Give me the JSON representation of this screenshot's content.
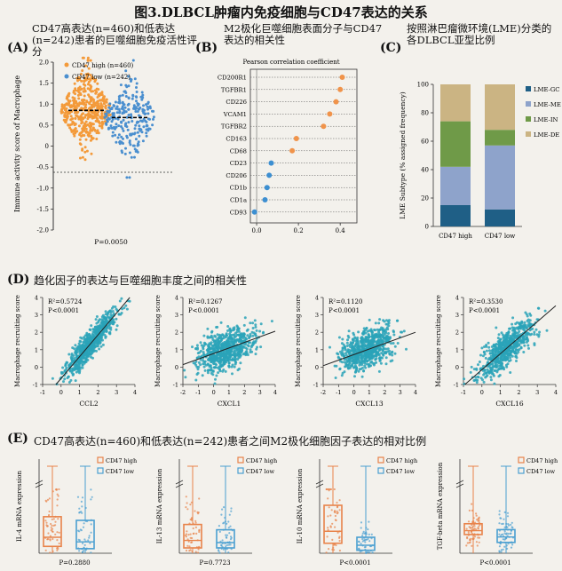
{
  "title": "图3.DLBCL肿瘤内免疫细胞与CD47表达的关系",
  "panelA": {
    "letter": "(A)",
    "title": "CD47高表达(n=460)和低表达(n=242)患者的巨噬细胞免疫活性评分",
    "legend": [
      "CD47 high (n=460)",
      "CD47 low (n=242)"
    ],
    "ylabel": "Immune activity score of Macrophage",
    "yticks": [
      "2.0",
      "1.5",
      "1.0",
      "0.5",
      "0",
      "-0.5",
      "-1.0",
      "-1.5",
      "-2.0"
    ],
    "pvalue": "P=0.0050",
    "colors": {
      "high": "#f39a3a",
      "low": "#4a8fcf"
    }
  },
  "panelB": {
    "letter": "(B)",
    "title": "M2极化巨噬细胞表面分子与CD47表达的相关性",
    "axis_title": "Pearson correlation coefficient",
    "xticks": [
      "0.0",
      "0.2",
      "0.4"
    ],
    "genes": [
      "CD200R1",
      "TGFBR1",
      "CD226",
      "VCAM1",
      "TGFBR2",
      "CD163",
      "CD68",
      "CD23",
      "CD206",
      "CD1b",
      "CD1a",
      "CD93"
    ]
  },
  "panelC": {
    "letter": "(C)",
    "title": "按照淋巴瘤微环境(LME)分类的各DLBCL亚型比例",
    "ylabel": "LME Subtype (% assigned frequency)",
    "yticks": [
      "100",
      "80",
      "60",
      "40",
      "20",
      "0"
    ],
    "xlabels": [
      "CD47 high",
      "CD47 low"
    ],
    "legend": [
      "LME-GC",
      "LME-ME",
      "LME-IN",
      "LME-DE"
    ]
  },
  "panelD": {
    "letter": "(D)",
    "title": "趋化因子的表达与巨噬细胞丰度之间的相关性",
    "ylabel": "Macrophage recruiting score",
    "plots": [
      {
        "xlabel": "CCL2",
        "r2": "R²=0.5724",
        "p": "P<0.0001"
      },
      {
        "xlabel": "CXCL1",
        "r2": "R²=0.1267",
        "p": "P<0.0001"
      },
      {
        "xlabel": "CXCL13",
        "r2": "R²=0.1120",
        "p": "P<0.0001"
      },
      {
        "xlabel": "CXCL16",
        "r2": "R²=0.3530",
        "p": "P<0.0001"
      }
    ]
  },
  "panelE": {
    "letter": "(E)",
    "title": "CD47高表达(n=460)和低表达(n=242)患者之间M2极化细胞因子表达的相对比例",
    "legend": [
      "CD47 high",
      "CD47 low"
    ],
    "plots": [
      {
        "ylabel": "IL-4 mRNA expression",
        "p": "P=0.2880"
      },
      {
        "ylabel": "IL-13 mRNA expression",
        "p": "P=0.7723"
      },
      {
        "ylabel": "IL-10 mRNA expression",
        "p": "P<0.0001"
      },
      {
        "ylabel": "TGF-beta mRNA expression",
        "p": "P<0.0001"
      }
    ]
  },
  "chart_data": [
    {
      "type": "scatter",
      "panel": "A",
      "categories": [
        "CD47 high",
        "CD47 low"
      ],
      "series": [
        {
          "name": "CD47 high (n=460)",
          "mean": 0.85
        },
        {
          "name": "CD47 low (n=242)",
          "mean": 0.68
        }
      ],
      "ylabel": "Immune activity score of Macrophage",
      "ylim": [
        -2.0,
        2.0
      ]
    },
    {
      "type": "scatter",
      "panel": "B",
      "categories": [
        "CD200R1",
        "TGFBR1",
        "CD226",
        "VCAM1",
        "TGFBR2",
        "CD163",
        "CD68",
        "CD23",
        "CD206",
        "CD1b",
        "CD1a",
        "CD93"
      ],
      "values": [
        0.41,
        0.4,
        0.38,
        0.35,
        0.32,
        0.19,
        0.17,
        0.07,
        0.06,
        0.05,
        0.04,
        -0.01
      ],
      "xlabel": "Pearson correlation coefficient",
      "xlim": [
        -0.03,
        0.48
      ]
    },
    {
      "type": "bar",
      "panel": "C",
      "categories": [
        "CD47 high",
        "CD47 low"
      ],
      "series": [
        {
          "name": "LME-GC",
          "values": [
            15,
            12
          ]
        },
        {
          "name": "LME-ME",
          "values": [
            27,
            45
          ]
        },
        {
          "name": "LME-IN",
          "values": [
            32,
            11
          ]
        },
        {
          "name": "LME-DE",
          "values": [
            26,
            32
          ]
        }
      ],
      "ylabel": "LME Subtype (% assigned frequency)",
      "ylim": [
        0,
        100
      ]
    },
    {
      "type": "scatter",
      "panel": "D",
      "plots": [
        {
          "xlabel": "CCL2",
          "r2": 0.5724,
          "xlim": [
            -1,
            4
          ],
          "ylim": [
            -1,
            4
          ],
          "slope": 1.25,
          "intercept": -0.65
        },
        {
          "xlabel": "CXCL1",
          "r2": 0.1267,
          "xlim": [
            -2,
            4
          ],
          "ylim": [
            -1,
            4
          ],
          "slope": 0.32,
          "intercept": 0.78
        },
        {
          "xlabel": "CXCL13",
          "r2": 0.112,
          "xlim": [
            -2,
            4
          ],
          "ylim": [
            -1,
            4
          ],
          "slope": 0.32,
          "intercept": 0.72
        },
        {
          "xlabel": "CXCL16",
          "r2": 0.353,
          "xlim": [
            -1,
            4
          ],
          "ylim": [
            -1,
            4
          ],
          "slope": 0.92,
          "intercept": -0.15
        }
      ],
      "ylabel": "Macrophage recruiting score"
    },
    {
      "type": "box",
      "panel": "E",
      "plots": [
        {
          "ylabel": "IL-4 mRNA expression",
          "high": {
            "q1": 0.15,
            "median": 0.35,
            "q3": 0.8
          },
          "low": {
            "q1": 0.1,
            "median": 0.25,
            "q3": 0.72
          }
        },
        {
          "ylabel": "IL-13 mRNA expression",
          "high": {
            "q1": 0.05,
            "median": 0.12,
            "q3": 0.27
          },
          "low": {
            "q1": 0.05,
            "median": 0.1,
            "q3": 0.22
          }
        },
        {
          "ylabel": "IL-10 mRNA expression",
          "high": {
            "q1": 5,
            "median": 11,
            "q3": 24
          },
          "low": {
            "q1": 1.5,
            "median": 4,
            "q3": 8
          }
        },
        {
          "ylabel": "TGF-beta mRNA expression",
          "high": {
            "q1": 38,
            "median": 46,
            "q3": 60
          },
          "low": {
            "q1": 22,
            "median": 33,
            "q3": 48
          }
        }
      ]
    }
  ]
}
